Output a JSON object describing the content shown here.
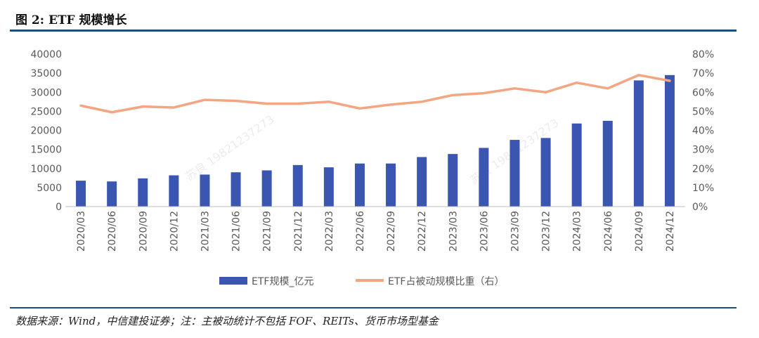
{
  "figure": {
    "title": "图 2: ETF 规模增长",
    "source": "数据来源：Wind，中信建投证券；注：主被动统计不包括 FOF、REITs、货币市场型基金",
    "watermark": "苏良 19821237273"
  },
  "colors": {
    "bar": "#3a56b0",
    "line": "#f4a582",
    "axis": "#595959",
    "rule": "#1f4e79"
  },
  "chart_data": {
    "type": "bar",
    "categories": [
      "2020/03",
      "2020/06",
      "2020/09",
      "2020/12",
      "2021/03",
      "2021/06",
      "2021/09",
      "2021/12",
      "2022/03",
      "2022/06",
      "2022/09",
      "2022/12",
      "2023/03",
      "2023/06",
      "2023/09",
      "2023/12",
      "2024/03",
      "2024/06",
      "2024/09",
      "2024/12"
    ],
    "series": [
      {
        "name": "ETF规模_亿元",
        "type": "bar",
        "axis": "left",
        "values": [
          6800,
          6600,
          7400,
          8200,
          8400,
          9000,
          9500,
          10900,
          10300,
          11300,
          11300,
          13000,
          13800,
          15400,
          17500,
          18000,
          21800,
          22500,
          33100,
          34500
        ]
      },
      {
        "name": "ETF占被动规模比重（右）",
        "type": "line",
        "axis": "right",
        "values": [
          0.53,
          0.495,
          0.525,
          0.52,
          0.56,
          0.555,
          0.54,
          0.54,
          0.55,
          0.515,
          0.535,
          0.55,
          0.585,
          0.595,
          0.62,
          0.6,
          0.65,
          0.62,
          0.69,
          0.66
        ]
      }
    ],
    "y_left": {
      "min": 0,
      "max": 40000,
      "ticks": [
        "0",
        "5000",
        "10000",
        "15000",
        "20000",
        "25000",
        "30000",
        "35000",
        "40000"
      ]
    },
    "y_right": {
      "min": 0,
      "max": 0.8,
      "ticks": [
        "0%",
        "10%",
        "20%",
        "30%",
        "40%",
        "50%",
        "60%",
        "70%",
        "80%"
      ]
    },
    "legend_position": "bottom"
  }
}
